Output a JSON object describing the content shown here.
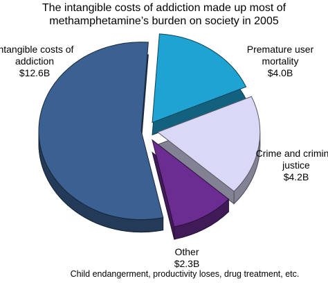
{
  "chart_data": {
    "type": "pie",
    "title": "The intangible costs of addiction made up most of methamphetamine’s burden on society in 2005",
    "categories": [
      "Premature user mortality",
      "Crime and criminal justice",
      "Other",
      "Intangible costs of addiction"
    ],
    "values": [
      4.0,
      4.2,
      2.3,
      12.6
    ],
    "value_labels": [
      "$4.0B",
      "$4.2B",
      "$2.3B",
      "$12.6B"
    ],
    "colors": [
      "#1ea3d3",
      "#d9d9f7",
      "#6b2d91",
      "#3a6192"
    ],
    "note": "Child endangerment, productivity loses, drug treatment, etc."
  }
}
